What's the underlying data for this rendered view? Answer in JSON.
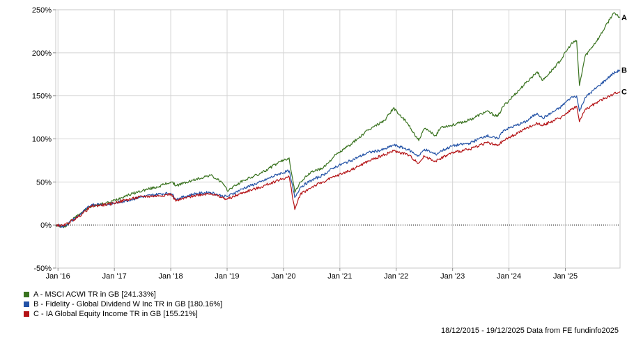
{
  "chart_data": {
    "type": "line",
    "title": "",
    "xlabel": "",
    "ylabel": "",
    "ylim": [
      -50,
      250
    ],
    "y_ticks": [
      -50,
      0,
      50,
      100,
      150,
      200,
      250
    ],
    "y_tick_labels": [
      "-50%",
      "0%",
      "50%",
      "100%",
      "150%",
      "200%",
      "250%"
    ],
    "x_tick_labels": [
      "Jan '16",
      "Jan '17",
      "Jan '18",
      "Jan '19",
      "Jan '20",
      "Jan '21",
      "Jan '22",
      "Jan '23",
      "Jan '24",
      "Jan '25"
    ],
    "x_tick_years": [
      2016,
      2017,
      2018,
      2019,
      2020,
      2021,
      2022,
      2023,
      2024,
      2025
    ],
    "xlim_years": [
      2015.96,
      2025.97
    ],
    "grid": true,
    "zero_line": "dotted",
    "series": [
      {
        "id": "A",
        "name": "A - MSCI ACWI TR in GB [241.33%]",
        "color": "#3a7320",
        "x": [
          2015.96,
          2016.1,
          2016.35,
          2016.6,
          2016.9,
          2017.2,
          2017.5,
          2017.8,
          2018.0,
          2018.1,
          2018.4,
          2018.7,
          2018.9,
          2019.0,
          2019.3,
          2019.6,
          2019.9,
          2020.1,
          2020.2,
          2020.3,
          2020.5,
          2020.7,
          2020.9,
          2021.2,
          2021.5,
          2021.8,
          2021.95,
          2022.2,
          2022.4,
          2022.5,
          2022.7,
          2022.8,
          2023.0,
          2023.3,
          2023.6,
          2023.8,
          2023.9,
          2024.3,
          2024.5,
          2024.6,
          2024.9,
          2025.1,
          2025.2,
          2025.25,
          2025.35,
          2025.6,
          2025.85,
          2025.97
        ],
        "values": [
          0,
          -3,
          12,
          22,
          26,
          34,
          40,
          45,
          50,
          46,
          52,
          58,
          50,
          40,
          52,
          60,
          72,
          78,
          38,
          50,
          62,
          66,
          80,
          94,
          110,
          122,
          136,
          118,
          98,
          112,
          104,
          114,
          116,
          122,
          132,
          126,
          138,
          165,
          178,
          168,
          190,
          210,
          214,
          162,
          196,
          218,
          246,
          241
        ]
      },
      {
        "id": "B",
        "name": "B - Fidelity - Global Dividend W Inc TR in GB [180.16%]",
        "color": "#2352a6",
        "x": [
          2015.96,
          2016.1,
          2016.35,
          2016.6,
          2016.9,
          2017.2,
          2017.5,
          2017.8,
          2018.0,
          2018.1,
          2018.4,
          2018.7,
          2018.9,
          2019.0,
          2019.3,
          2019.6,
          2019.9,
          2020.1,
          2020.2,
          2020.3,
          2020.5,
          2020.7,
          2020.9,
          2021.2,
          2021.5,
          2021.8,
          2021.95,
          2022.2,
          2022.4,
          2022.5,
          2022.7,
          2022.8,
          2023.0,
          2023.3,
          2023.6,
          2023.8,
          2023.9,
          2024.3,
          2024.5,
          2024.6,
          2024.9,
          2025.1,
          2025.2,
          2025.25,
          2025.35,
          2025.6,
          2025.85,
          2025.97
        ],
        "values": [
          0,
          -2,
          10,
          24,
          24,
          28,
          33,
          36,
          37,
          30,
          36,
          38,
          34,
          33,
          43,
          50,
          59,
          63,
          32,
          44,
          52,
          58,
          67,
          75,
          84,
          88,
          93,
          88,
          80,
          88,
          82,
          86,
          92,
          95,
          104,
          100,
          110,
          120,
          130,
          124,
          136,
          148,
          150,
          132,
          148,
          162,
          176,
          180
        ]
      },
      {
        "id": "C",
        "name": "C - IA Global Equity Income TR in GB [155.21%]",
        "color": "#b41316",
        "x": [
          2015.96,
          2016.1,
          2016.35,
          2016.6,
          2016.9,
          2017.2,
          2017.5,
          2017.8,
          2018.0,
          2018.1,
          2018.4,
          2018.7,
          2018.9,
          2019.0,
          2019.3,
          2019.6,
          2019.9,
          2020.1,
          2020.2,
          2020.3,
          2020.5,
          2020.7,
          2020.9,
          2021.2,
          2021.5,
          2021.8,
          2021.95,
          2022.2,
          2022.4,
          2022.5,
          2022.7,
          2022.8,
          2023.0,
          2023.3,
          2023.6,
          2023.8,
          2023.9,
          2024.3,
          2024.5,
          2024.6,
          2024.9,
          2025.1,
          2025.2,
          2025.25,
          2025.35,
          2025.6,
          2025.85,
          2025.97
        ],
        "values": [
          0,
          -1,
          9,
          22,
          24,
          29,
          33,
          34,
          36,
          28,
          34,
          37,
          32,
          30,
          38,
          44,
          52,
          56,
          18,
          36,
          44,
          50,
          56,
          64,
          74,
          82,
          86,
          82,
          72,
          80,
          74,
          78,
          84,
          88,
          96,
          92,
          98,
          112,
          118,
          116,
          124,
          134,
          138,
          120,
          134,
          144,
          152,
          155
        ]
      }
    ]
  },
  "footer": "18/12/2015 - 19/12/2025 Data from FE fundinfo2025"
}
